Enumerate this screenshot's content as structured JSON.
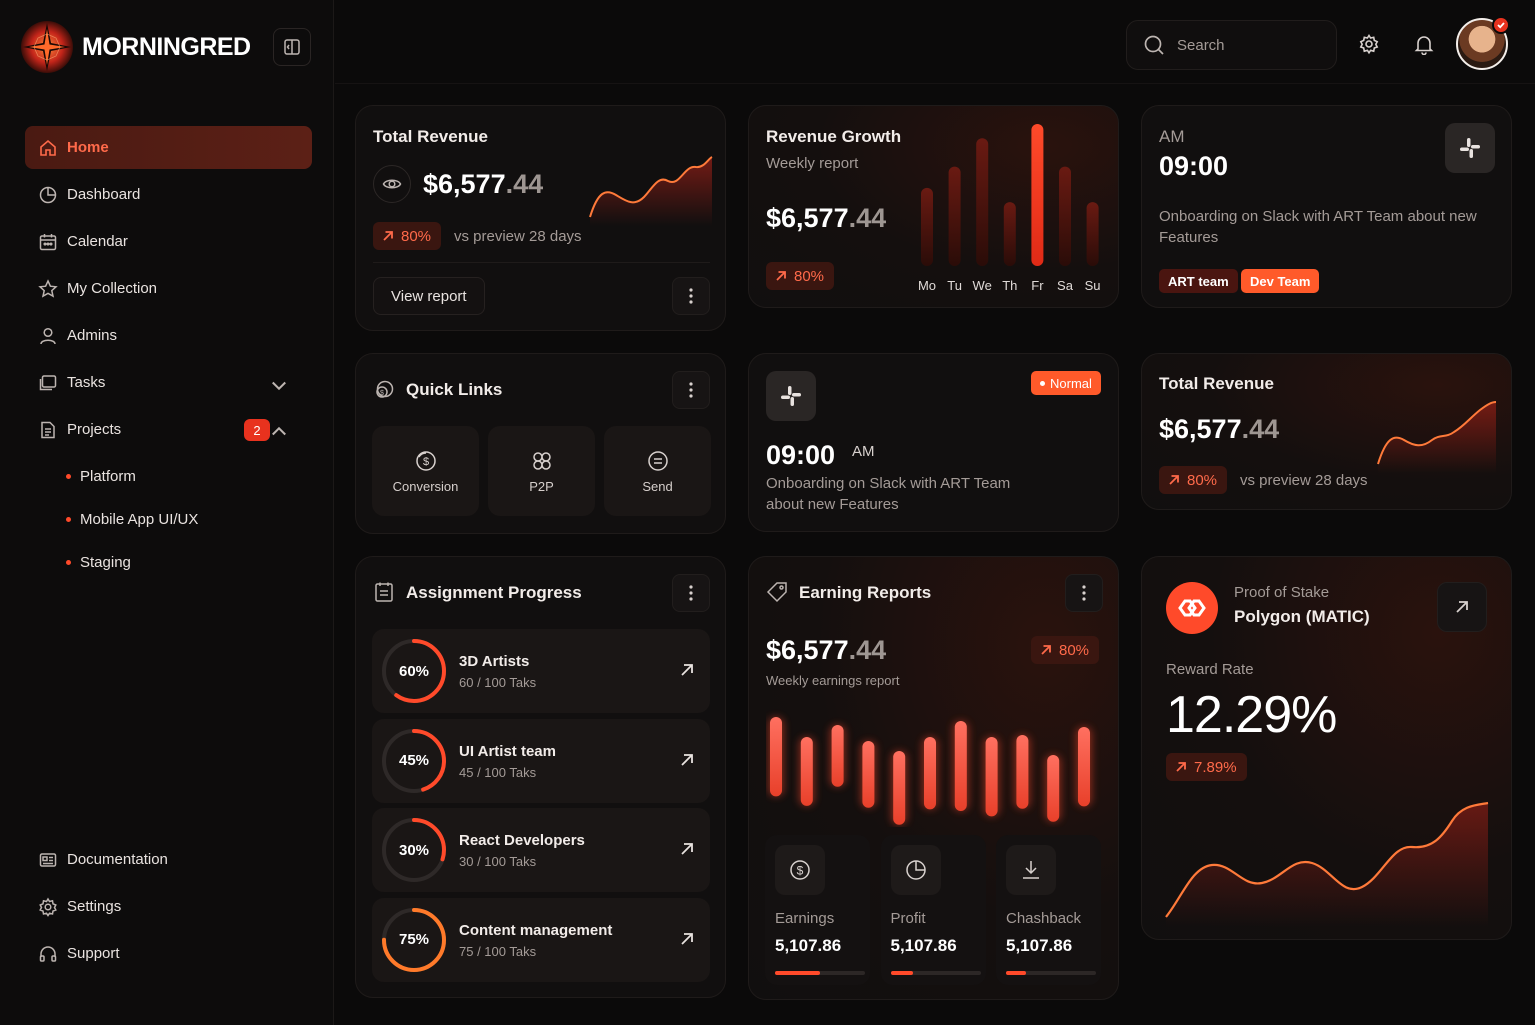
{
  "brand": {
    "name": "MORNINGRED",
    "accent": "#ff4a2a"
  },
  "sidebar": {
    "items": [
      {
        "label": "Home",
        "icon": "home-icon",
        "active": true
      },
      {
        "label": "Dashboard",
        "icon": "pie-chart-icon"
      },
      {
        "label": "Calendar",
        "icon": "calendar-icon"
      },
      {
        "label": "My Collection",
        "icon": "star-icon"
      },
      {
        "label": "Admins",
        "icon": "user-icon"
      },
      {
        "label": "Tasks",
        "icon": "folder-icon",
        "expandable": true
      },
      {
        "label": "Projects",
        "icon": "document-icon",
        "badge": "2",
        "expanded": true
      }
    ],
    "sub_items": [
      "Platform",
      "Mobile App UI/UX",
      "Staging"
    ],
    "bottom_items": [
      {
        "label": "Documentation",
        "icon": "documentation-icon"
      },
      {
        "label": "Settings",
        "icon": "settings-icon"
      },
      {
        "label": "Support",
        "icon": "headphones-icon"
      }
    ]
  },
  "header": {
    "search_placeholder": "Search"
  },
  "total_revenue_card": {
    "title": "Total Revenue",
    "amount_whole": "$6,577",
    "amount_dec": ".44",
    "change": "80%",
    "compare": "vs preview 28 days",
    "button": "View report"
  },
  "revenue_growth_card": {
    "title": "Revenue Growth",
    "subtitle": "Weekly report",
    "amount_whole": "$6,577",
    "amount_dec": ".44",
    "change": "80%",
    "chart_data": {
      "type": "bar",
      "categories": [
        "Mo",
        "Tu",
        "We",
        "Th",
        "Fr",
        "Sa",
        "Su"
      ],
      "values": [
        55,
        70,
        90,
        45,
        100,
        70,
        45
      ],
      "highlight": "Fr"
    }
  },
  "schedule_card": {
    "period": "AM",
    "time": "09:00",
    "description": "Onboarding on Slack with ART Team about new Features",
    "tags": [
      "ART team",
      "Dev Team"
    ]
  },
  "quick_links": {
    "title": "Quick Links",
    "items": [
      {
        "label": "Conversion",
        "icon": "conversion-icon"
      },
      {
        "label": "P2P",
        "icon": "p2p-icon"
      },
      {
        "label": "Send",
        "icon": "send-icon"
      }
    ]
  },
  "meeting_card": {
    "status": "Normal",
    "time": "09:00",
    "period": "AM",
    "description_line1": "Onboarding on Slack with ART Team",
    "description_line2": "about new Features"
  },
  "total_revenue_card_2": {
    "title": "Total Revenue",
    "amount_whole": "$6,577",
    "amount_dec": ".44",
    "change": "80%",
    "compare": "vs preview 28 days"
  },
  "assignment_progress": {
    "title": "Assignment Progress",
    "items": [
      {
        "pct_label": "60%",
        "value": 60,
        "name": "3D Artists",
        "sub": "60 / 100 Taks"
      },
      {
        "pct_label": "45%",
        "value": 45,
        "name": "UI Artist team",
        "sub": "45 / 100 Taks"
      },
      {
        "pct_label": "30%",
        "value": 30,
        "name": "React Developers",
        "sub": "30 / 100 Taks"
      },
      {
        "pct_label": "75%",
        "value": 75,
        "name": "Content management",
        "sub": "75 / 100 Taks"
      }
    ]
  },
  "earning_reports": {
    "title": "Earning Reports",
    "amount_whole": "$6,577",
    "amount_dec": ".44",
    "subtitle": "Weekly earnings report",
    "change": "80%",
    "chart_data": {
      "type": "bar",
      "values": [
        70,
        55,
        45,
        52,
        62,
        60,
        85,
        70,
        62,
        52,
        70
      ]
    },
    "tiles": [
      {
        "label": "Earnings",
        "value": "5,107.86",
        "progress": 0.5,
        "icon": "dollar-icon"
      },
      {
        "label": "Profit",
        "value": "5,107.86",
        "progress": 0.25,
        "icon": "pie-icon"
      },
      {
        "label": "Chashback",
        "value": "5,107.86",
        "progress": 0.22,
        "icon": "download-icon"
      }
    ]
  },
  "staking_card": {
    "kicker": "Proof of Stake",
    "name": "Polygon (MATIC)",
    "rate_label": "Reward Rate",
    "rate": "12.29%",
    "change": "7.89%"
  }
}
